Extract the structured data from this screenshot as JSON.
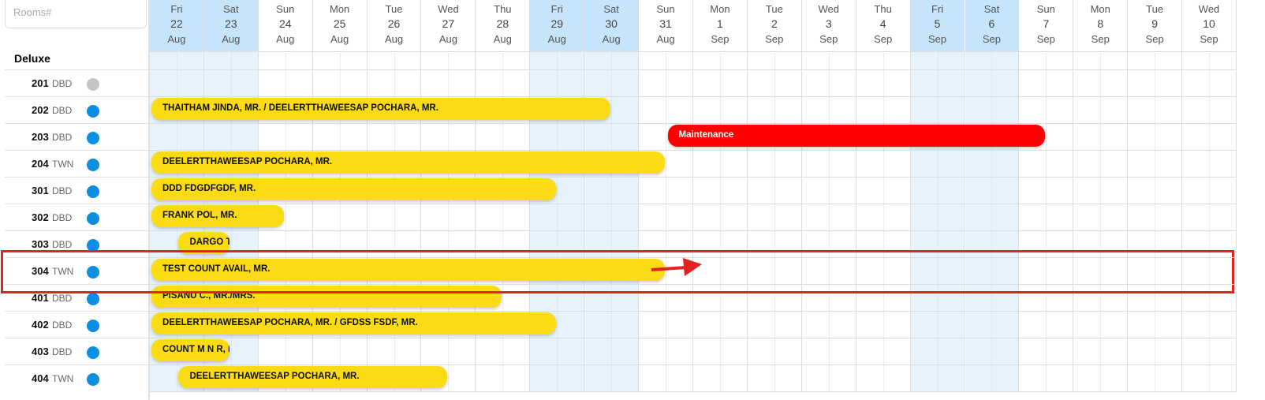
{
  "search": {
    "placeholder": "Rooms#"
  },
  "category": "Deluxe",
  "colors": {
    "weekend_header": "#c6e5fb",
    "weekend_body": "#e6f3fd",
    "booking": "#fadb14",
    "maintenance": "#ff0000",
    "status_active": "#0b8fe0",
    "status_inactive": "#c4c4c4",
    "highlight": "#e52222"
  },
  "days": [
    {
      "dow": "Fri",
      "day": "22",
      "month": "Aug",
      "weekend": true
    },
    {
      "dow": "Sat",
      "day": "23",
      "month": "Aug",
      "weekend": true
    },
    {
      "dow": "Sun",
      "day": "24",
      "month": "Aug"
    },
    {
      "dow": "Mon",
      "day": "25",
      "month": "Aug"
    },
    {
      "dow": "Tue",
      "day": "26",
      "month": "Aug"
    },
    {
      "dow": "Wed",
      "day": "27",
      "month": "Aug"
    },
    {
      "dow": "Thu",
      "day": "28",
      "month": "Aug"
    },
    {
      "dow": "Fri",
      "day": "29",
      "month": "Aug",
      "weekend": true
    },
    {
      "dow": "Sat",
      "day": "30",
      "month": "Aug",
      "weekend": true
    },
    {
      "dow": "Sun",
      "day": "31",
      "month": "Aug"
    },
    {
      "dow": "Mon",
      "day": "1",
      "month": "Sep"
    },
    {
      "dow": "Tue",
      "day": "2",
      "month": "Sep"
    },
    {
      "dow": "Wed",
      "day": "3",
      "month": "Sep"
    },
    {
      "dow": "Thu",
      "day": "4",
      "month": "Sep"
    },
    {
      "dow": "Fri",
      "day": "5",
      "month": "Sep",
      "weekend": true
    },
    {
      "dow": "Sat",
      "day": "6",
      "month": "Sep",
      "weekend": true
    },
    {
      "dow": "Sun",
      "day": "7",
      "month": "Sep"
    },
    {
      "dow": "Mon",
      "day": "8",
      "month": "Sep"
    },
    {
      "dow": "Tue",
      "day": "9",
      "month": "Sep"
    },
    {
      "dow": "Wed",
      "day": "10",
      "month": "Sep"
    }
  ],
  "rooms": [
    {
      "number": "201",
      "type": "DBD",
      "status": "inactive",
      "booking": null
    },
    {
      "number": "202",
      "type": "DBD",
      "status": "active",
      "booking": {
        "label": "THAITHAM JINDA, MR. / DEELERTTHAWEESAP POCHARA, MR.",
        "from": null,
        "to": "30 Aug",
        "kind": "booking"
      }
    },
    {
      "number": "203",
      "type": "DBD",
      "status": "active",
      "booking": {
        "label": "Maintenance",
        "from": "31 Aug",
        "to": "7 Sep",
        "kind": "maintenance"
      }
    },
    {
      "number": "204",
      "type": "TWN",
      "status": "active",
      "booking": {
        "label": "DEELERTTHAWEESAP POCHARA, MR.",
        "from": null,
        "to": "31 Aug",
        "kind": "booking"
      }
    },
    {
      "number": "301",
      "type": "DBD",
      "status": "active",
      "booking": {
        "label": "DDD FDGDFGDF, MR.",
        "from": null,
        "to": "29 Aug",
        "kind": "booking"
      }
    },
    {
      "number": "302",
      "type": "DBD",
      "status": "active",
      "booking": {
        "label": "FRANK POL, MR.",
        "from": null,
        "to": "24 Aug",
        "kind": "booking"
      }
    },
    {
      "number": "303",
      "type": "DBD",
      "status": "active",
      "booking": {
        "label": "DARGO T",
        "from": "22 Aug",
        "to": "23 Aug",
        "kind": "booking"
      }
    },
    {
      "number": "304",
      "type": "TWN",
      "status": "active",
      "booking": {
        "label": "TEST COUNT AVAIL, MR.",
        "from": null,
        "to": "31 Aug",
        "kind": "booking"
      }
    },
    {
      "number": "401",
      "type": "DBD",
      "status": "active",
      "booking": {
        "label": "PISANU C., MR./MRS.",
        "from": null,
        "to": "28 Aug",
        "kind": "booking"
      }
    },
    {
      "number": "402",
      "type": "DBD",
      "status": "active",
      "booking": {
        "label": "DEELERTTHAWEESAP POCHARA, MR. / GFDSS FSDF, MR.",
        "from": null,
        "to": "29 Aug",
        "kind": "booking"
      }
    },
    {
      "number": "403",
      "type": "DBD",
      "status": "active",
      "booking": {
        "label": "COUNT M N R, I",
        "from": null,
        "to": "23 Aug",
        "kind": "booking"
      }
    },
    {
      "number": "404",
      "type": "TWN",
      "status": "active",
      "booking": {
        "label": "DEELERTTHAWEESAP POCHARA, MR.",
        "from": "22 Aug",
        "to": "27 Aug",
        "kind": "booking"
      }
    }
  ]
}
